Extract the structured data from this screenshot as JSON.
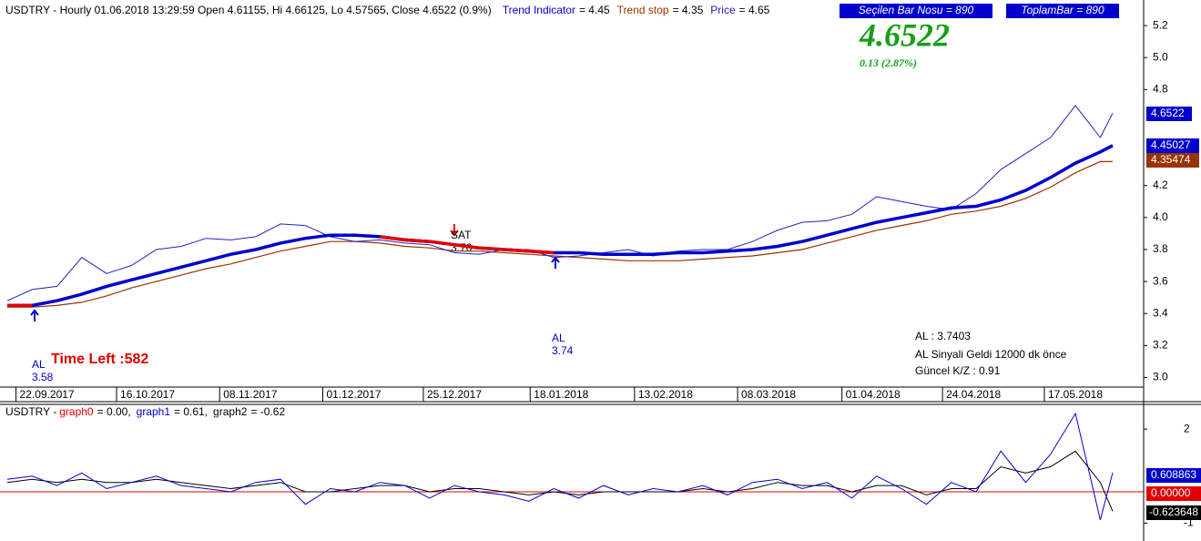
{
  "chart_data": [
    {
      "type": "line",
      "title": "USDTRY - Hourly 01.06.2018 13:29:59 Open 4.61155, Hi 4.66125, Lo 4.57565, Close 4.6522 (0.9%)",
      "x": [
        0,
        20,
        40,
        60,
        80,
        100,
        120,
        140,
        160,
        180,
        200,
        220,
        240,
        260,
        280,
        300,
        320,
        340,
        360,
        380,
        400,
        420,
        440,
        460,
        480,
        500,
        520,
        540,
        560,
        580,
        600,
        620,
        640,
        660,
        680,
        700,
        720,
        740,
        760,
        780,
        800,
        820,
        840,
        860,
        880,
        890
      ],
      "xlim": [
        0,
        890
      ],
      "xticks": [
        {
          "value": 7,
          "label": "22.09.2017"
        },
        {
          "value": 88,
          "label": "16.10.2017"
        },
        {
          "value": 171,
          "label": "08.11.2017"
        },
        {
          "value": 254,
          "label": "01.12.2017"
        },
        {
          "value": 335,
          "label": "25.12.2017"
        },
        {
          "value": 421,
          "label": "18.01.2018"
        },
        {
          "value": 505,
          "label": "13.02.2018"
        },
        {
          "value": 588,
          "label": "08.03.2018"
        },
        {
          "value": 672,
          "label": "01.04.2018"
        },
        {
          "value": 753,
          "label": "24.04.2018"
        },
        {
          "value": 835,
          "label": "17.05.2018"
        }
      ],
      "ylim": [
        2.94,
        5.36
      ],
      "yticks": [
        {
          "value": 3,
          "label": "3.0"
        },
        3.2,
        3.4,
        3.6,
        3.8,
        {
          "value": 4,
          "label": "4.0"
        },
        4.2,
        4.8,
        {
          "value": 5,
          "label": "5.0"
        },
        5.2
      ],
      "series": [
        {
          "name": "Trend Indicator",
          "legend_label": "= 4.45",
          "color": "#0000cc",
          "sell_color": "#e00000",
          "point_colors": [
            "sell",
            "sell",
            "buy",
            "buy",
            "buy",
            "buy",
            "buy",
            "buy",
            "buy",
            "buy",
            "buy",
            "buy",
            "buy",
            "buy",
            "buy",
            "sell",
            "sell",
            "sell",
            "sell",
            "sell",
            "sell",
            "sell",
            "sell",
            "buy",
            "buy",
            "buy",
            "buy",
            "buy",
            "buy",
            "buy",
            "buy",
            "buy",
            "buy",
            "buy",
            "buy",
            "buy",
            "buy",
            "buy",
            "buy",
            "buy",
            "buy",
            "buy",
            "buy",
            "buy",
            "buy",
            "buy"
          ],
          "values": [
            3.45,
            3.45,
            3.48,
            3.52,
            3.57,
            3.61,
            3.65,
            3.69,
            3.73,
            3.77,
            3.8,
            3.84,
            3.87,
            3.89,
            3.89,
            3.88,
            3.86,
            3.85,
            3.83,
            3.81,
            3.8,
            3.79,
            3.78,
            3.78,
            3.77,
            3.77,
            3.77,
            3.78,
            3.78,
            3.79,
            3.8,
            3.82,
            3.85,
            3.89,
            3.93,
            3.97,
            4.0,
            4.03,
            4.06,
            4.07,
            4.11,
            4.17,
            4.25,
            4.34,
            4.41,
            4.45
          ]
        },
        {
          "name": "Trend stop",
          "legend_label": "= 4.35",
          "color": "#993300",
          "values": [
            3.44,
            3.44,
            3.45,
            3.47,
            3.51,
            3.56,
            3.6,
            3.64,
            3.68,
            3.71,
            3.75,
            3.79,
            3.82,
            3.85,
            3.85,
            3.84,
            3.82,
            3.81,
            3.79,
            3.79,
            3.78,
            3.77,
            3.76,
            3.75,
            3.74,
            3.73,
            3.73,
            3.73,
            3.74,
            3.75,
            3.76,
            3.78,
            3.8,
            3.84,
            3.88,
            3.92,
            3.95,
            3.98,
            4.02,
            4.04,
            4.07,
            4.12,
            4.19,
            4.28,
            4.35,
            4.35
          ]
        },
        {
          "name": "Price",
          "legend_label": " = 4.65",
          "color": "#2020c0",
          "values": [
            3.48,
            3.55,
            3.57,
            3.75,
            3.65,
            3.7,
            3.8,
            3.82,
            3.87,
            3.86,
            3.88,
            3.96,
            3.95,
            3.88,
            3.85,
            3.86,
            3.84,
            3.83,
            3.78,
            3.77,
            3.8,
            3.8,
            3.75,
            3.76,
            3.78,
            3.8,
            3.76,
            3.79,
            3.8,
            3.8,
            3.85,
            3.92,
            3.97,
            3.98,
            4.02,
            4.13,
            4.1,
            4.07,
            4.05,
            4.15,
            4.3,
            4.4,
            4.5,
            4.7,
            4.5,
            4.6522
          ]
        }
      ]
    },
    {
      "type": "line",
      "title": "USDTRY - ",
      "ylim": [
        -1.57,
        2.79
      ],
      "yticks": [
        -1,
        2
      ],
      "series": [
        {
          "name": "graph0",
          "legend_label": "= 0.00,",
          "color": "#e00000",
          "value": 0
        },
        {
          "name": "graph1",
          "legend_label": "= 0.61,",
          "color": "#0000cc",
          "values": [
            0.4,
            0.5,
            0.2,
            0.6,
            0.1,
            0.3,
            0.5,
            0.2,
            0.1,
            0.0,
            0.3,
            0.4,
            -0.4,
            0.1,
            0.0,
            0.3,
            0.2,
            -0.2,
            0.2,
            0.0,
            -0.1,
            -0.3,
            0.1,
            -0.2,
            0.2,
            -0.1,
            0.1,
            0.0,
            0.2,
            -0.1,
            0.3,
            0.4,
            0.1,
            0.3,
            -0.2,
            0.5,
            0.1,
            -0.4,
            0.3,
            0.0,
            1.3,
            0.3,
            1.2,
            2.5,
            -0.9,
            0.61
          ]
        },
        {
          "name": "graph2",
          "legend_label": "= -0.62",
          "color": "#000000",
          "values": [
            0.3,
            0.4,
            0.3,
            0.4,
            0.3,
            0.3,
            0.4,
            0.3,
            0.2,
            0.1,
            0.2,
            0.3,
            0.0,
            0.0,
            0.1,
            0.2,
            0.2,
            0.0,
            0.1,
            0.1,
            0.0,
            -0.1,
            0.0,
            -0.1,
            0.0,
            0.0,
            0.0,
            0.0,
            0.1,
            0.0,
            0.1,
            0.3,
            0.2,
            0.2,
            0.0,
            0.2,
            0.2,
            -0.1,
            0.1,
            0.1,
            0.8,
            0.6,
            0.8,
            1.3,
            0.3,
            -0.62
          ]
        }
      ]
    }
  ],
  "info_boxes": [
    "Seçilen Bar Nosu = 890",
    "ToplamBar = 890"
  ],
  "big_price": "4.6522",
  "change": "0.13  (2.87%)",
  "signals": {
    "sell": [
      "SAT",
      "3.76"
    ],
    "buy1": [
      "AL",
      "3.58"
    ],
    "buy2": [
      "AL",
      "3.74"
    ]
  },
  "time_left": "Time Left :582",
  "summary": [
    "AL  : 3.7403",
    "AL Sinyali Geldi 12000 dk önce",
    "Güncel K/Z : 0.91"
  ],
  "price_tags": [
    "4.6522",
    "4.45027",
    "4.35474"
  ],
  "osc_tags": [
    "0.608863",
    "0.00000",
    "-0.623648"
  ]
}
